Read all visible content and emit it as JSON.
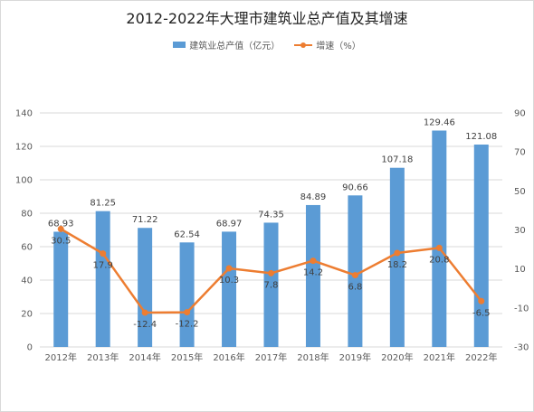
{
  "title": "2012-2022年大理市建筑业总产值及其增速",
  "legend": {
    "bar_label": "建筑业总产值（亿元）",
    "line_label": "增速（%）"
  },
  "colors": {
    "bar": "#5b9bd5",
    "line": "#ed7d31",
    "grid": "#d9d9d9",
    "text": "#595959"
  },
  "chart_data": {
    "type": "bar+line",
    "title": "2012-2022年大理市建筑业总产值及其增速",
    "categories": [
      "2012年",
      "2013年",
      "2014年",
      "2015年",
      "2016年",
      "2017年",
      "2018年",
      "2019年",
      "2020年",
      "2021年",
      "2022年"
    ],
    "series": [
      {
        "name": "建筑业总产值（亿元）",
        "type": "bar",
        "axis": "left",
        "values": [
          68.93,
          81.25,
          71.22,
          62.54,
          68.97,
          74.35,
          84.89,
          90.66,
          107.18,
          129.46,
          121.08
        ],
        "labels": [
          "68.93",
          "81.25",
          "71.22",
          "62.54",
          "68.97",
          "74.35",
          "84.89",
          "90.66",
          "107.18",
          "129.46",
          "121.08"
        ]
      },
      {
        "name": "增速（%）",
        "type": "line",
        "axis": "right",
        "values": [
          30.5,
          17.9,
          -12.4,
          -12.2,
          10.3,
          7.8,
          14.2,
          6.8,
          18.2,
          20.8,
          -6.5
        ],
        "labels": [
          "30.5",
          "17.9",
          "-12.4",
          "-12.2",
          "10.3",
          "7.8",
          "14.2",
          "6.8",
          "18.2",
          "20.8",
          "-6.5"
        ]
      }
    ],
    "y_left": {
      "min": 0,
      "max": 140,
      "ticks": [
        "0",
        "20",
        "40",
        "60",
        "80",
        "100",
        "120",
        "140"
      ]
    },
    "y_right": {
      "min": -30,
      "max": 90,
      "ticks": [
        "-30",
        "-10",
        "10",
        "30",
        "50",
        "70",
        "90"
      ]
    },
    "grid": true,
    "legend_position": "top"
  }
}
